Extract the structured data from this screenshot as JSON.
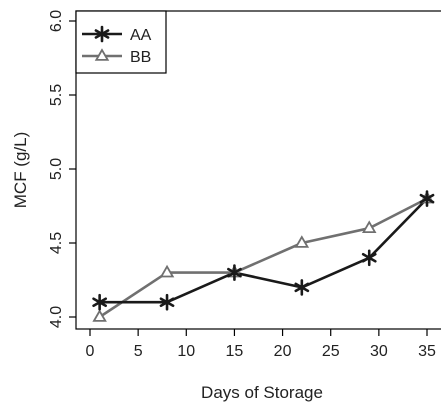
{
  "chart_data": {
    "type": "line",
    "xlabel": "Days of Storage",
    "ylabel": "MCF (g/L)",
    "xlim": [
      0,
      35
    ],
    "ylim": [
      4.0,
      6.0
    ],
    "xticks": [
      "0",
      "5",
      "10",
      "15",
      "20",
      "25",
      "30",
      "35"
    ],
    "yticks": [
      "4.0",
      "4.5",
      "5.0",
      "5.5",
      "6.0"
    ],
    "legend_position": "top-left",
    "grid": false,
    "series": [
      {
        "name": "AA",
        "x": [
          1,
          8,
          15,
          22,
          29,
          35
        ],
        "y": [
          4.1,
          4.1,
          4.3,
          4.2,
          4.4,
          4.8
        ],
        "color": "#1a1a1a",
        "marker": "asterisk",
        "line_style": "solid"
      },
      {
        "name": "BB",
        "x": [
          1,
          8,
          15,
          22,
          29,
          35
        ],
        "y": [
          4.0,
          4.3,
          4.3,
          4.5,
          4.6,
          4.8
        ],
        "color": "#707070",
        "marker": "triangle-open",
        "line_style": "solid"
      }
    ]
  }
}
